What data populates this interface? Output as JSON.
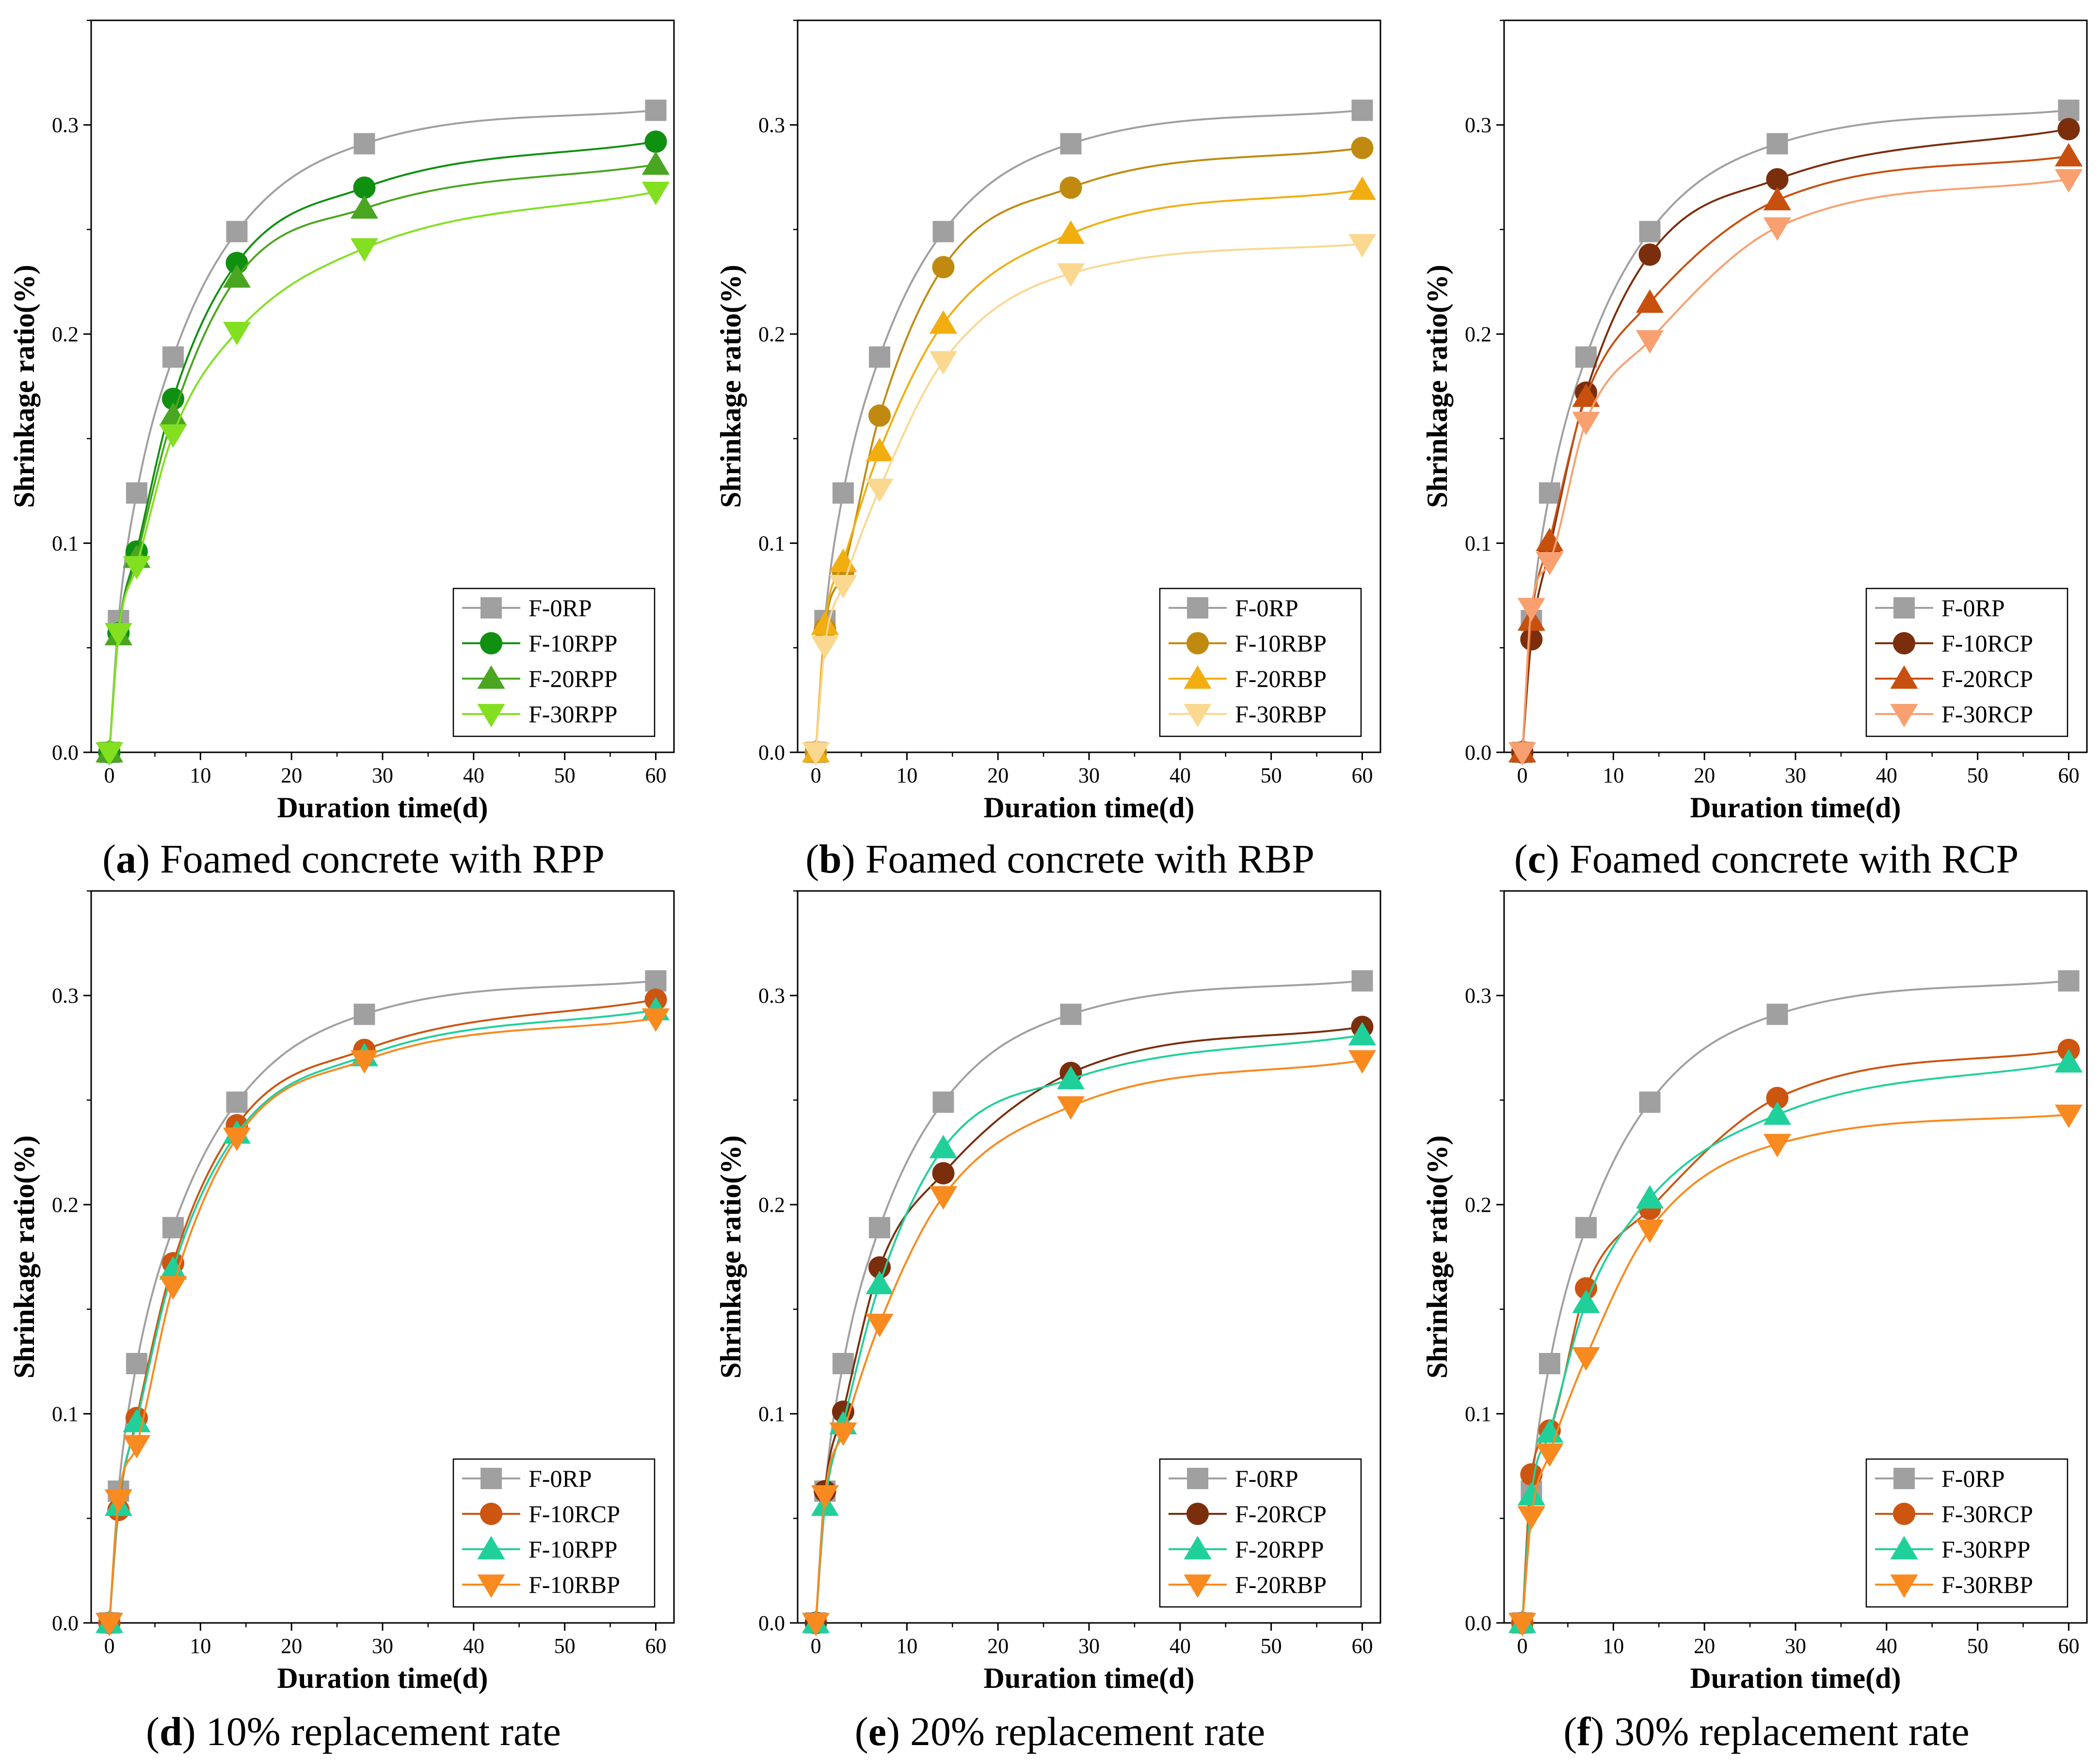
{
  "chart_data": [
    {
      "id": "a",
      "type": "line",
      "caption_letter": "a",
      "caption_text": "Foamed concrete with RPP",
      "xlabel": "Duration time(d)",
      "ylabel": "Shrinkage ratio(%)",
      "xlim": [
        -2,
        62
      ],
      "ylim": [
        0,
        0.35
      ],
      "xticks": [
        0,
        10,
        20,
        30,
        40,
        50,
        60
      ],
      "yticks": [
        0.0,
        0.1,
        0.2,
        0.3
      ],
      "x": [
        0,
        1,
        3,
        7,
        14,
        28,
        60
      ],
      "legend_position": "bottom-right",
      "series": [
        {
          "name": "F-0RP",
          "marker": "square",
          "color": "#a0a0a0",
          "values": [
            0,
            0.063,
            0.124,
            0.189,
            0.249,
            0.291,
            0.307
          ]
        },
        {
          "name": "F-10RPP",
          "marker": "circle",
          "color": "#109010",
          "values": [
            0,
            0.057,
            0.096,
            0.169,
            0.234,
            0.27,
            0.292
          ]
        },
        {
          "name": "F-20RPP",
          "marker": "triangle-up",
          "color": "#4aa520",
          "values": [
            0,
            0.056,
            0.093,
            0.161,
            0.227,
            0.26,
            0.281
          ]
        },
        {
          "name": "F-30RPP",
          "marker": "triangle-down",
          "color": "#82e020",
          "values": [
            0,
            0.057,
            0.089,
            0.152,
            0.201,
            0.241,
            0.268
          ]
        }
      ]
    },
    {
      "id": "b",
      "type": "line",
      "caption_letter": "b",
      "caption_text": "Foamed concrete with RBP",
      "xlabel": "Duration time(d)",
      "ylabel": "Shrinkage ratio(%)",
      "xlim": [
        -2,
        62
      ],
      "ylim": [
        0,
        0.35
      ],
      "xticks": [
        0,
        10,
        20,
        30,
        40,
        50,
        60
      ],
      "yticks": [
        0.0,
        0.1,
        0.2,
        0.3
      ],
      "x": [
        0,
        1,
        3,
        7,
        14,
        28,
        60
      ],
      "legend_position": "bottom-right",
      "series": [
        {
          "name": "F-0RP",
          "marker": "square",
          "color": "#a0a0a0",
          "values": [
            0,
            0.063,
            0.124,
            0.189,
            0.249,
            0.291,
            0.307
          ]
        },
        {
          "name": "F-10RBP",
          "marker": "circle",
          "color": "#c08a10",
          "values": [
            0,
            0.059,
            0.086,
            0.161,
            0.232,
            0.27,
            0.289
          ]
        },
        {
          "name": "F-20RBP",
          "marker": "triangle-up",
          "color": "#f2ae10",
          "values": [
            0,
            0.061,
            0.091,
            0.144,
            0.205,
            0.248,
            0.269
          ]
        },
        {
          "name": "F-30RBP",
          "marker": "triangle-down",
          "color": "#fad890",
          "values": [
            0,
            0.051,
            0.08,
            0.126,
            0.187,
            0.229,
            0.243
          ]
        }
      ]
    },
    {
      "id": "c",
      "type": "line",
      "caption_letter": "c",
      "caption_text": "Foamed concrete with RCP",
      "xlabel": "Duration time(d)",
      "ylabel": "Shrinkage ratio(%)",
      "xlim": [
        -2,
        62
      ],
      "ylim": [
        0,
        0.35
      ],
      "xticks": [
        0,
        10,
        20,
        30,
        40,
        50,
        60
      ],
      "yticks": [
        0.0,
        0.1,
        0.2,
        0.3
      ],
      "x": [
        0,
        1,
        3,
        7,
        14,
        28,
        60
      ],
      "legend_position": "bottom-right",
      "series": [
        {
          "name": "F-0RP",
          "marker": "square",
          "color": "#a0a0a0",
          "values": [
            0,
            0.063,
            0.124,
            0.189,
            0.249,
            0.291,
            0.307
          ]
        },
        {
          "name": "F-10RCP",
          "marker": "circle",
          "color": "#7a2e0c",
          "values": [
            0,
            0.054,
            0.097,
            0.172,
            0.238,
            0.274,
            0.298
          ]
        },
        {
          "name": "F-20RCP",
          "marker": "triangle-up",
          "color": "#c8500f",
          "values": [
            0,
            0.063,
            0.101,
            0.17,
            0.215,
            0.264,
            0.285
          ]
        },
        {
          "name": "F-30RCP",
          "marker": "triangle-down",
          "color": "#f8a070",
          "values": [
            0,
            0.069,
            0.091,
            0.158,
            0.197,
            0.251,
            0.274
          ]
        }
      ]
    },
    {
      "id": "d",
      "type": "line",
      "caption_letter": "d",
      "caption_text": "10% replacement rate",
      "xlabel": "Duration time(d)",
      "ylabel": "Shrinkage ratio(%)",
      "xlim": [
        -2,
        62
      ],
      "ylim": [
        0,
        0.35
      ],
      "xticks": [
        0,
        10,
        20,
        30,
        40,
        50,
        60
      ],
      "yticks": [
        0.0,
        0.1,
        0.2,
        0.3
      ],
      "x": [
        0,
        1,
        3,
        7,
        14,
        28,
        60
      ],
      "legend_position": "bottom-right",
      "series": [
        {
          "name": "F-0RP",
          "marker": "square",
          "color": "#a0a0a0",
          "values": [
            0,
            0.063,
            0.124,
            0.189,
            0.249,
            0.291,
            0.307
          ]
        },
        {
          "name": "F-10RCP",
          "marker": "circle",
          "color": "#cc5510",
          "values": [
            0,
            0.054,
            0.098,
            0.172,
            0.238,
            0.274,
            0.298
          ]
        },
        {
          "name": "F-10RPP",
          "marker": "triangle-up",
          "color": "#20d09a",
          "values": [
            0,
            0.056,
            0.096,
            0.169,
            0.234,
            0.271,
            0.293
          ]
        },
        {
          "name": "F-10RBP",
          "marker": "triangle-down",
          "color": "#f88a20",
          "values": [
            0,
            0.059,
            0.085,
            0.161,
            0.232,
            0.269,
            0.289
          ]
        }
      ]
    },
    {
      "id": "e",
      "type": "line",
      "caption_letter": "e",
      "caption_text": "20% replacement rate",
      "xlabel": "Duration time(d)",
      "ylabel": "Shrinkage ratio(%)",
      "xlim": [
        -2,
        62
      ],
      "ylim": [
        0,
        0.35
      ],
      "xticks": [
        0,
        10,
        20,
        30,
        40,
        50,
        60
      ],
      "yticks": [
        0.0,
        0.1,
        0.2,
        0.3
      ],
      "x": [
        0,
        1,
        3,
        7,
        14,
        28,
        60
      ],
      "legend_position": "bottom-right",
      "series": [
        {
          "name": "F-0RP",
          "marker": "square",
          "color": "#a0a0a0",
          "values": [
            0,
            0.063,
            0.124,
            0.189,
            0.249,
            0.291,
            0.307
          ]
        },
        {
          "name": "F-20RCP",
          "marker": "circle",
          "color": "#7a2e0c",
          "values": [
            0,
            0.063,
            0.101,
            0.17,
            0.215,
            0.263,
            0.285
          ]
        },
        {
          "name": "F-20RPP",
          "marker": "triangle-up",
          "color": "#20d09a",
          "values": [
            0,
            0.056,
            0.095,
            0.162,
            0.227,
            0.26,
            0.281
          ]
        },
        {
          "name": "F-20RBP",
          "marker": "triangle-down",
          "color": "#f88a20",
          "values": [
            0,
            0.061,
            0.091,
            0.143,
            0.204,
            0.247,
            0.269
          ]
        }
      ]
    },
    {
      "id": "f",
      "type": "line",
      "caption_letter": "f",
      "caption_text": "30% replacement rate",
      "xlabel": "Duration time(d)",
      "ylabel": "Shrinkage ratio(%)",
      "xlim": [
        -2,
        62
      ],
      "ylim": [
        0,
        0.35
      ],
      "xticks": [
        0,
        10,
        20,
        30,
        40,
        50,
        60
      ],
      "yticks": [
        0.0,
        0.1,
        0.2,
        0.3
      ],
      "x": [
        0,
        1,
        3,
        7,
        14,
        28,
        60
      ],
      "legend_position": "bottom-right",
      "series": [
        {
          "name": "F-0RP",
          "marker": "square",
          "color": "#a0a0a0",
          "values": [
            0,
            0.063,
            0.124,
            0.189,
            0.249,
            0.291,
            0.307
          ]
        },
        {
          "name": "F-30RCP",
          "marker": "circle",
          "color": "#cc5510",
          "values": [
            0,
            0.071,
            0.092,
            0.16,
            0.198,
            0.251,
            0.274
          ]
        },
        {
          "name": "F-30RPP",
          "marker": "triangle-up",
          "color": "#20d09a",
          "values": [
            0,
            0.061,
            0.091,
            0.153,
            0.203,
            0.243,
            0.268
          ]
        },
        {
          "name": "F-30RBP",
          "marker": "triangle-down",
          "color": "#f88a20",
          "values": [
            0,
            0.051,
            0.081,
            0.127,
            0.188,
            0.229,
            0.243
          ]
        }
      ]
    }
  ]
}
